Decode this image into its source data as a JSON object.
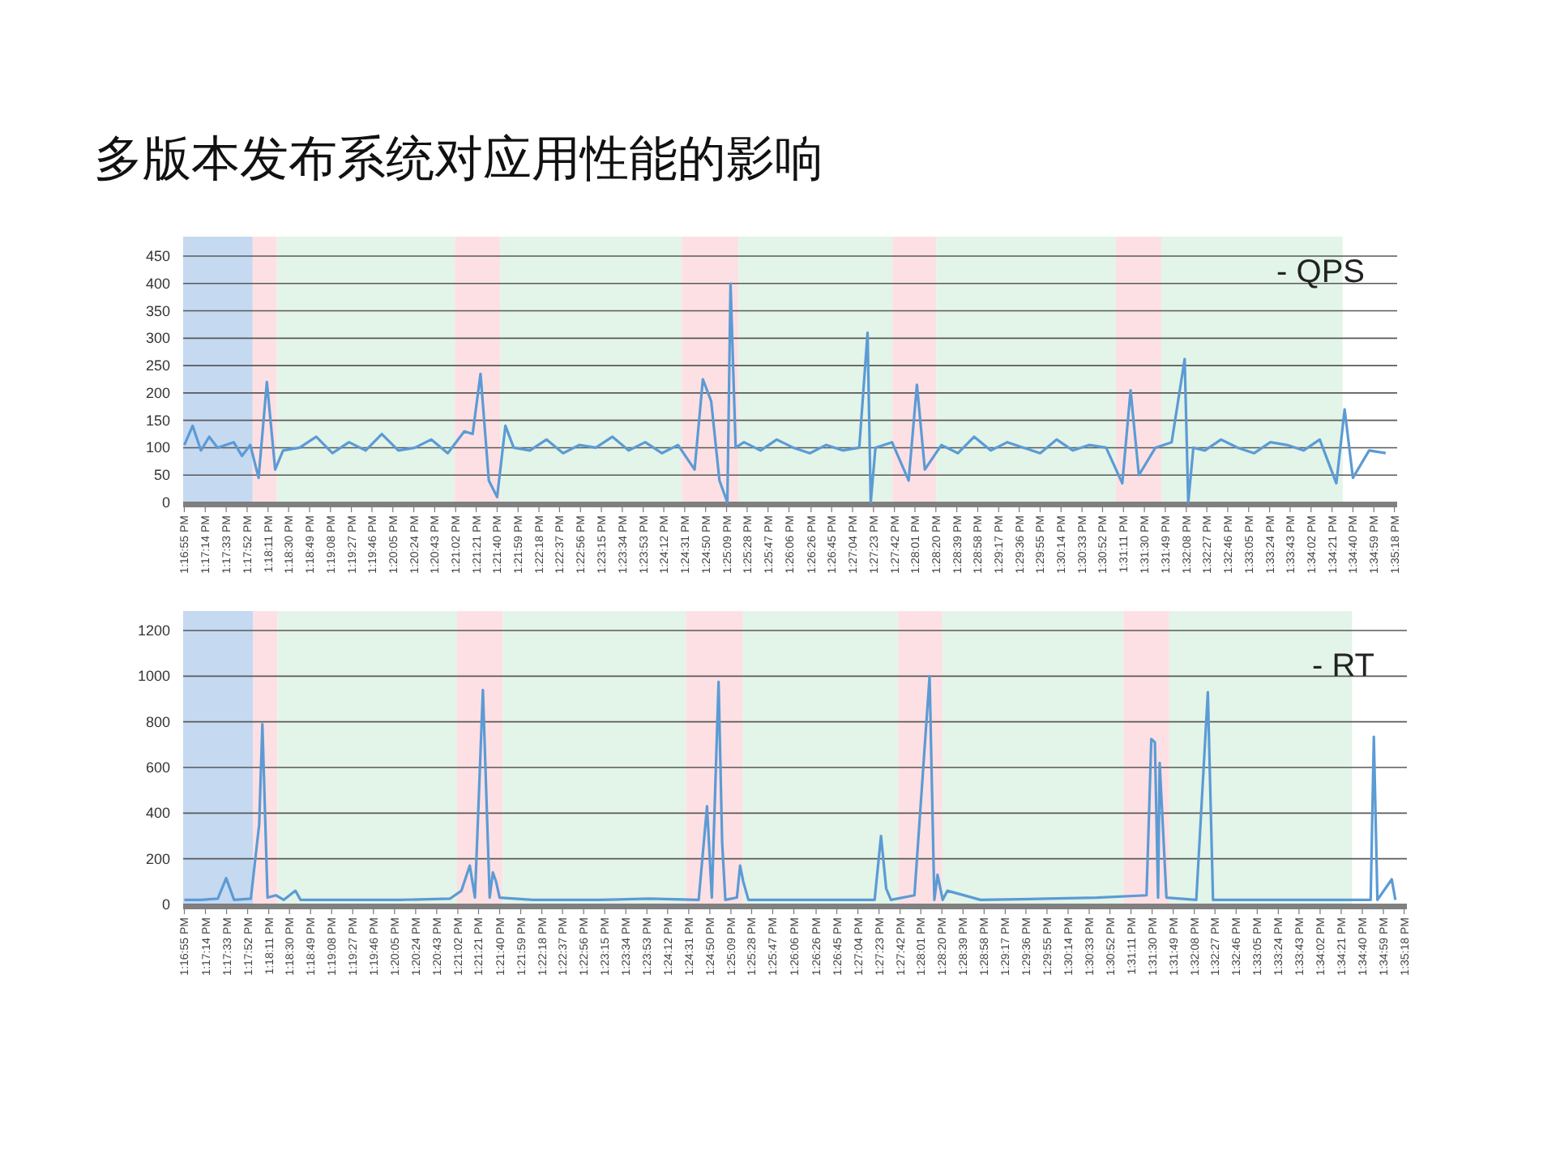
{
  "chart_data": [
    {
      "type": "line",
      "title": "多版本发布系统对应用性能的影响",
      "annotations": [
        "- QPS"
      ],
      "grid": "y",
      "xlim": [
        13.2816,
        13.589
      ],
      "ylim": [
        0,
        450
      ],
      "yticks": [
        0,
        50,
        100,
        150,
        200,
        250,
        300,
        350,
        400,
        450
      ],
      "xticks": [
        {
          "value": 13.2819,
          "label": "1:16:55 PM"
        },
        {
          "value": 13.2872,
          "label": "1:17:14 PM"
        },
        {
          "value": 13.2925,
          "label": "1:17:33 PM"
        },
        {
          "value": 13.2978,
          "label": "1:17:52 PM"
        },
        {
          "value": 13.3031,
          "label": "1:18:11 PM"
        },
        {
          "value": 13.3083,
          "label": "1:18:30 PM"
        },
        {
          "value": 13.3136,
          "label": "1:18:49 PM"
        },
        {
          "value": 13.3189,
          "label": "1:19:08 PM"
        },
        {
          "value": 13.3242,
          "label": "1:19:27 PM"
        },
        {
          "value": 13.3294,
          "label": "1:19:46 PM"
        },
        {
          "value": 13.3347,
          "label": "1:20:05 PM"
        },
        {
          "value": 13.34,
          "label": "1:20:24 PM"
        },
        {
          "value": 13.3453,
          "label": "1:20:43 PM"
        },
        {
          "value": 13.3506,
          "label": "1:21:02 PM"
        },
        {
          "value": 13.3558,
          "label": "1:21:21 PM"
        },
        {
          "value": 13.3611,
          "label": "1:21:40 PM"
        },
        {
          "value": 13.3664,
          "label": "1:21:59 PM"
        },
        {
          "value": 13.3717,
          "label": "1:22:18 PM"
        },
        {
          "value": 13.3769,
          "label": "1:22:37 PM"
        },
        {
          "value": 13.3822,
          "label": "1:22:56 PM"
        },
        {
          "value": 13.3875,
          "label": "1:23:15 PM"
        },
        {
          "value": 13.3928,
          "label": "1:23:34 PM"
        },
        {
          "value": 13.3981,
          "label": "1:23:53 PM"
        },
        {
          "value": 13.4033,
          "label": "1:24:12 PM"
        },
        {
          "value": 13.4086,
          "label": "1:24:31 PM"
        },
        {
          "value": 13.4139,
          "label": "1:24:50 PM"
        },
        {
          "value": 13.4192,
          "label": "1:25:09 PM"
        },
        {
          "value": 13.4244,
          "label": "1:25:28 PM"
        },
        {
          "value": 13.4297,
          "label": "1:25:47 PM"
        },
        {
          "value": 13.435,
          "label": "1:26:06 PM"
        },
        {
          "value": 13.4406,
          "label": "1:26:26 PM"
        },
        {
          "value": 13.4458,
          "label": "1:26:45 PM"
        },
        {
          "value": 13.4511,
          "label": "1:27:04 PM"
        },
        {
          "value": 13.4564,
          "label": "1:27:23 PM"
        },
        {
          "value": 13.4617,
          "label": "1:27:42 PM"
        },
        {
          "value": 13.4669,
          "label": "1:28:01 PM"
        },
        {
          "value": 13.4722,
          "label": "1:28:20 PM"
        },
        {
          "value": 13.4775,
          "label": "1:28:39 PM"
        },
        {
          "value": 13.4828,
          "label": "1:28:58 PM"
        },
        {
          "value": 13.4881,
          "label": "1:29:17 PM"
        },
        {
          "value": 13.4933,
          "label": "1:29:36 PM"
        },
        {
          "value": 13.4986,
          "label": "1:29:55 PM"
        },
        {
          "value": 13.5039,
          "label": "1:30:14 PM"
        },
        {
          "value": 13.5092,
          "label": "1:30:33 PM"
        },
        {
          "value": 13.5144,
          "label": "1:30:52 PM"
        },
        {
          "value": 13.5197,
          "label": "1:31:11 PM"
        },
        {
          "value": 13.525,
          "label": "1:31:30 PM"
        },
        {
          "value": 13.5303,
          "label": "1:31:49 PM"
        },
        {
          "value": 13.5356,
          "label": "1:32:08 PM"
        },
        {
          "value": 13.5408,
          "label": "1:32:27 PM"
        },
        {
          "value": 13.5461,
          "label": "1:32:46 PM"
        },
        {
          "value": 13.5514,
          "label": "1:33:05 PM"
        },
        {
          "value": 13.5567,
          "label": "1:33:24 PM"
        },
        {
          "value": 13.5619,
          "label": "1:33:43 PM"
        },
        {
          "value": 13.5672,
          "label": "1:34:02 PM"
        },
        {
          "value": 13.5725,
          "label": "1:34:21 PM"
        },
        {
          "value": 13.5778,
          "label": "1:34:40 PM"
        },
        {
          "value": 13.5831,
          "label": "1:34:59 PM"
        },
        {
          "value": 13.5883,
          "label": "1:35:18 PM"
        }
      ],
      "bands": [
        {
          "axis": "x",
          "from": 13.2816,
          "to": 13.2992,
          "color": "#c5d9f1"
        },
        {
          "axis": "x",
          "from": 13.2992,
          "to": 13.3053,
          "color": "#fde0e4"
        },
        {
          "axis": "x",
          "from": 13.3053,
          "to": 13.3504,
          "color": "#e3f4e8"
        },
        {
          "axis": "x",
          "from": 13.3504,
          "to": 13.3619,
          "color": "#fde0e4"
        },
        {
          "axis": "x",
          "from": 13.3619,
          "to": 13.4079,
          "color": "#e3f4e8"
        },
        {
          "axis": "x",
          "from": 13.4079,
          "to": 13.4222,
          "color": "#fde0e4"
        },
        {
          "axis": "x",
          "from": 13.4222,
          "to": 13.4612,
          "color": "#e3f4e8"
        },
        {
          "axis": "x",
          "from": 13.4612,
          "to": 13.4723,
          "color": "#fde0e4"
        },
        {
          "axis": "x",
          "from": 13.4723,
          "to": 13.5178,
          "color": "#e3f4e8"
        },
        {
          "axis": "x",
          "from": 13.5178,
          "to": 13.5293,
          "color": "#fde0e4"
        },
        {
          "axis": "x",
          "from": 13.5293,
          "to": 13.5752,
          "color": "#e3f4e8"
        }
      ],
      "series": [
        {
          "color": "#5b9bd5",
          "x": [
            13.2819,
            13.284,
            13.2861,
            13.2882,
            13.2903,
            13.2944,
            13.2965,
            13.2986,
            13.3007,
            13.3028,
            13.3049,
            13.3069,
            13.3111,
            13.3153,
            13.3194,
            13.3236,
            13.3278,
            13.3319,
            13.3361,
            13.3403,
            13.3444,
            13.3486,
            13.3528,
            13.3549,
            13.3569,
            13.359,
            13.3611,
            13.3632,
            13.3653,
            13.3694,
            13.3736,
            13.3778,
            13.3819,
            13.3861,
            13.3903,
            13.3944,
            13.3986,
            13.4028,
            13.4069,
            13.4111,
            13.4132,
            13.4153,
            13.4174,
            13.4194,
            13.4202,
            13.4215,
            13.4236,
            13.4278,
            13.4319,
            13.4361,
            13.4403,
            13.4444,
            13.4486,
            13.4528,
            13.4549,
            13.4557,
            13.4569,
            13.4611,
            13.4653,
            13.4674,
            13.4694,
            13.4736,
            13.4778,
            13.4819,
            13.4861,
            13.4903,
            13.4944,
            13.4986,
            13.5028,
            13.5069,
            13.5111,
            13.5153,
            13.5194,
            13.5215,
            13.5236,
            13.5278,
            13.5319,
            13.5352,
            13.5361,
            13.5374,
            13.5403,
            13.5444,
            13.5486,
            13.5528,
            13.5569,
            13.5611,
            13.5653,
            13.5694,
            13.5736,
            13.5757,
            13.5778,
            13.5819,
            13.5861
          ],
          "values": [
            105,
            140,
            95,
            120,
            100,
            110,
            85,
            105,
            45,
            220,
            60,
            95,
            100,
            120,
            90,
            110,
            95,
            125,
            95,
            100,
            115,
            90,
            130,
            125,
            235,
            40,
            10,
            140,
            100,
            95,
            115,
            90,
            105,
            100,
            120,
            95,
            110,
            90,
            105,
            60,
            225,
            185,
            40,
            0,
            400,
            100,
            110,
            95,
            115,
            100,
            90,
            105,
            95,
            100,
            310,
            0,
            100,
            110,
            40,
            215,
            60,
            105,
            90,
            120,
            95,
            110,
            100,
            90,
            115,
            95,
            105,
            100,
            35,
            205,
            50,
            100,
            110,
            262,
            0,
            100,
            95,
            115,
            100,
            90,
            110,
            105,
            95,
            115,
            35,
            170,
            45,
            95,
            90
          ]
        }
      ]
    },
    {
      "type": "line",
      "annotations": [
        "- RT"
      ],
      "grid": "y",
      "xlim": [
        13.2816,
        13.589
      ],
      "ylim": [
        0,
        1200
      ],
      "yticks": [
        0,
        200,
        400,
        600,
        800,
        1000,
        1200
      ],
      "xticks": [
        {
          "value": 13.2819,
          "label": "1:16:55 PM"
        },
        {
          "value": 13.2872,
          "label": "1:17:14 PM"
        },
        {
          "value": 13.2925,
          "label": "1:17:33 PM"
        },
        {
          "value": 13.2978,
          "label": "1:17:52 PM"
        },
        {
          "value": 13.3031,
          "label": "1:18:11 PM"
        },
        {
          "value": 13.3083,
          "label": "1:18:30 PM"
        },
        {
          "value": 13.3136,
          "label": "1:18:49 PM"
        },
        {
          "value": 13.3189,
          "label": "1:19:08 PM"
        },
        {
          "value": 13.3242,
          "label": "1:19:27 PM"
        },
        {
          "value": 13.3294,
          "label": "1:19:46 PM"
        },
        {
          "value": 13.3347,
          "label": "1:20:05 PM"
        },
        {
          "value": 13.34,
          "label": "1:20:24 PM"
        },
        {
          "value": 13.3453,
          "label": "1:20:43 PM"
        },
        {
          "value": 13.3506,
          "label": "1:21:02 PM"
        },
        {
          "value": 13.3558,
          "label": "1:21:21 PM"
        },
        {
          "value": 13.3611,
          "label": "1:21:40 PM"
        },
        {
          "value": 13.3664,
          "label": "1:21:59 PM"
        },
        {
          "value": 13.3717,
          "label": "1:22:18 PM"
        },
        {
          "value": 13.3769,
          "label": "1:22:37 PM"
        },
        {
          "value": 13.3822,
          "label": "1:22:56 PM"
        },
        {
          "value": 13.3875,
          "label": "1:23:15 PM"
        },
        {
          "value": 13.3928,
          "label": "1:23:34 PM"
        },
        {
          "value": 13.3981,
          "label": "1:23:53 PM"
        },
        {
          "value": 13.4033,
          "label": "1:24:12 PM"
        },
        {
          "value": 13.4086,
          "label": "1:24:31 PM"
        },
        {
          "value": 13.4139,
          "label": "1:24:50 PM"
        },
        {
          "value": 13.4192,
          "label": "1:25:09 PM"
        },
        {
          "value": 13.4244,
          "label": "1:25:28 PM"
        },
        {
          "value": 13.4297,
          "label": "1:25:47 PM"
        },
        {
          "value": 13.435,
          "label": "1:26:06 PM"
        },
        {
          "value": 13.4406,
          "label": "1:26:26 PM"
        },
        {
          "value": 13.4458,
          "label": "1:26:45 PM"
        },
        {
          "value": 13.4511,
          "label": "1:27:04 PM"
        },
        {
          "value": 13.4564,
          "label": "1:27:23 PM"
        },
        {
          "value": 13.4617,
          "label": "1:27:42 PM"
        },
        {
          "value": 13.4669,
          "label": "1:28:01 PM"
        },
        {
          "value": 13.4722,
          "label": "1:28:20 PM"
        },
        {
          "value": 13.4775,
          "label": "1:28:39 PM"
        },
        {
          "value": 13.4828,
          "label": "1:28:58 PM"
        },
        {
          "value": 13.4881,
          "label": "1:29:17 PM"
        },
        {
          "value": 13.4933,
          "label": "1:29:36 PM"
        },
        {
          "value": 13.4986,
          "label": "1:29:55 PM"
        },
        {
          "value": 13.5039,
          "label": "1:30:14 PM"
        },
        {
          "value": 13.5092,
          "label": "1:30:33 PM"
        },
        {
          "value": 13.5144,
          "label": "1:30:52 PM"
        },
        {
          "value": 13.5197,
          "label": "1:31:11 PM"
        },
        {
          "value": 13.525,
          "label": "1:31:30 PM"
        },
        {
          "value": 13.5303,
          "label": "1:31:49 PM"
        },
        {
          "value": 13.5356,
          "label": "1:32:08 PM"
        },
        {
          "value": 13.5408,
          "label": "1:32:27 PM"
        },
        {
          "value": 13.5461,
          "label": "1:32:46 PM"
        },
        {
          "value": 13.5514,
          "label": "1:33:05 PM"
        },
        {
          "value": 13.5567,
          "label": "1:33:24 PM"
        },
        {
          "value": 13.5619,
          "label": "1:33:43 PM"
        },
        {
          "value": 13.5672,
          "label": "1:34:02 PM"
        },
        {
          "value": 13.5725,
          "label": "1:34:21 PM"
        },
        {
          "value": 13.5778,
          "label": "1:34:40 PM"
        },
        {
          "value": 13.5831,
          "label": "1:34:59 PM"
        },
        {
          "value": 13.5883,
          "label": "1:35:18 PM"
        }
      ],
      "bands": [
        {
          "axis": "x",
          "from": 13.2816,
          "to": 13.2992,
          "color": "#c5d9f1"
        },
        {
          "axis": "x",
          "from": 13.2992,
          "to": 13.3053,
          "color": "#fde0e4"
        },
        {
          "axis": "x",
          "from": 13.3053,
          "to": 13.3504,
          "color": "#e3f4e8"
        },
        {
          "axis": "x",
          "from": 13.3504,
          "to": 13.3619,
          "color": "#fde0e4"
        },
        {
          "axis": "x",
          "from": 13.3619,
          "to": 13.4079,
          "color": "#e3f4e8"
        },
        {
          "axis": "x",
          "from": 13.4079,
          "to": 13.4222,
          "color": "#fde0e4"
        },
        {
          "axis": "x",
          "from": 13.4222,
          "to": 13.4612,
          "color": "#e3f4e8"
        },
        {
          "axis": "x",
          "from": 13.4612,
          "to": 13.4723,
          "color": "#fde0e4"
        },
        {
          "axis": "x",
          "from": 13.4723,
          "to": 13.5178,
          "color": "#e3f4e8"
        },
        {
          "axis": "x",
          "from": 13.5178,
          "to": 13.5293,
          "color": "#fde0e4"
        },
        {
          "axis": "x",
          "from": 13.5293,
          "to": 13.5752,
          "color": "#e3f4e8"
        }
      ],
      "series": [
        {
          "color": "#5b9bd5",
          "x": [
            13.2819,
            13.2861,
            13.2903,
            13.2924,
            13.2944,
            13.2986,
            13.3007,
            13.3015,
            13.3028,
            13.3049,
            13.3069,
            13.3098,
            13.3111,
            13.3236,
            13.3361,
            13.3486,
            13.3515,
            13.3536,
            13.3549,
            13.3569,
            13.3586,
            13.3594,
            13.3602,
            13.3611,
            13.3694,
            13.3861,
            13.3986,
            13.4111,
            13.4132,
            13.4144,
            13.4161,
            13.417,
            13.4178,
            13.4207,
            13.4215,
            13.4223,
            13.4236,
            13.4361,
            13.4486,
            13.4553,
            13.4569,
            13.4582,
            13.4594,
            13.4653,
            13.4691,
            13.4703,
            13.4711,
            13.4724,
            13.4736,
            13.4819,
            13.4986,
            13.5111,
            13.5236,
            13.5248,
            13.5257,
            13.5265,
            13.5269,
            13.5286,
            13.5361,
            13.539,
            13.5403,
            13.5528,
            13.5653,
            13.5799,
            13.5807,
            13.5816,
            13.5852,
            13.5861
          ],
          "values": [
            20,
            20,
            25,
            115,
            20,
            25,
            350,
            790,
            30,
            40,
            20,
            60,
            20,
            20,
            20,
            25,
            60,
            170,
            30,
            940,
            30,
            140,
            100,
            30,
            20,
            20,
            25,
            20,
            430,
            30,
            975,
            270,
            20,
            30,
            170,
            100,
            20,
            20,
            20,
            20,
            300,
            70,
            20,
            40,
            1000,
            20,
            130,
            20,
            60,
            20,
            25,
            30,
            40,
            725,
            710,
            30,
            620,
            30,
            20,
            930,
            20,
            20,
            20,
            20,
            735,
            20,
            110,
            20
          ]
        }
      ]
    }
  ]
}
